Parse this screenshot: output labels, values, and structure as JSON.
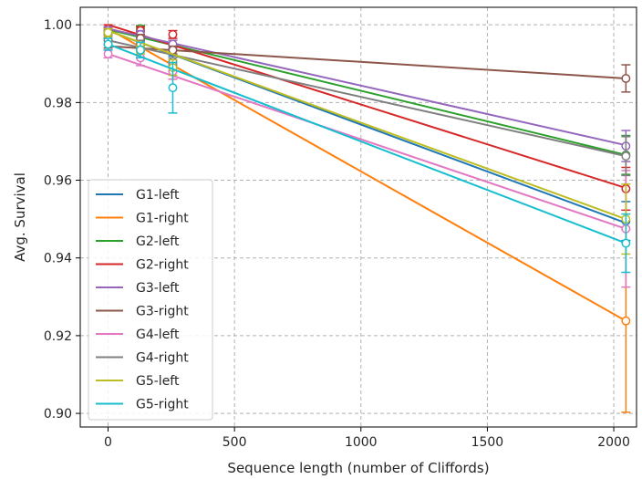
{
  "chart_data": {
    "type": "line",
    "xlabel": "Sequence length (number of Cliffords)",
    "ylabel": "Avg. Survival",
    "xlim": [
      -110,
      2090
    ],
    "ylim": [
      0.8965,
      1.0045
    ],
    "xticks": [
      0,
      500,
      1000,
      1500,
      2000
    ],
    "yticks": [
      0.9,
      0.92,
      0.94,
      0.96,
      0.98,
      1.0
    ],
    "xtick_labels": [
      "0",
      "500",
      "1000",
      "1500",
      "2000"
    ],
    "ytick_labels": [
      "0.90",
      "0.92",
      "0.94",
      "0.96",
      "0.98",
      "1.00"
    ],
    "grid": true,
    "legend_position": "lower-left",
    "x": [
      0,
      128,
      256,
      2048
    ],
    "series": [
      {
        "name": "G1-left",
        "color": "#1f77b4",
        "fit": [
          0.9985,
          0.949
        ],
        "points": [
          {
            "x": 0,
            "y": 0.9975,
            "err": 0.001
          },
          {
            "x": 128,
            "y": 0.996,
            "err": 0.001
          },
          {
            "x": 256,
            "y": 0.99,
            "err": 0.002
          },
          {
            "x": 2048,
            "y": 0.9495,
            "err": 0.005
          }
        ]
      },
      {
        "name": "G1-right",
        "color": "#ff7f0e",
        "fit": [
          0.999,
          0.9238
        ],
        "points": [
          {
            "x": 0,
            "y": 0.997,
            "err": 0.001
          },
          {
            "x": 128,
            "y": 0.994,
            "err": 0.001
          },
          {
            "x": 256,
            "y": 0.988,
            "err": 0.002
          },
          {
            "x": 2048,
            "y": 0.9238,
            "err": 0.0235
          }
        ]
      },
      {
        "name": "G2-left",
        "color": "#2ca02c",
        "fit": [
          0.9988,
          0.9665
        ],
        "points": [
          {
            "x": 0,
            "y": 0.998,
            "err": 0.001
          },
          {
            "x": 128,
            "y": 0.999,
            "err": 0.0008
          },
          {
            "x": 256,
            "y": 0.9935,
            "err": 0.001
          },
          {
            "x": 2048,
            "y": 0.9665,
            "err": 0.005
          }
        ]
      },
      {
        "name": "G2-right",
        "color": "#d62728",
        "fit": [
          1.0,
          0.958
        ],
        "points": [
          {
            "x": 0,
            "y": 0.999,
            "err": 0.001
          },
          {
            "x": 128,
            "y": 0.9985,
            "err": 0.001
          },
          {
            "x": 256,
            "y": 0.9975,
            "err": 0.001
          },
          {
            "x": 2048,
            "y": 0.9578,
            "err": 0.0055
          }
        ]
      },
      {
        "name": "G3-left",
        "color": "#9467bd",
        "fit": [
          0.999,
          0.969
        ],
        "points": [
          {
            "x": 0,
            "y": 0.9985,
            "err": 0.001
          },
          {
            "x": 128,
            "y": 0.9975,
            "err": 0.001
          },
          {
            "x": 256,
            "y": 0.995,
            "err": 0.001
          },
          {
            "x": 2048,
            "y": 0.9688,
            "err": 0.004
          }
        ]
      },
      {
        "name": "G3-right",
        "color": "#8c564b",
        "fit": [
          0.9945,
          0.9862
        ],
        "points": [
          {
            "x": 0,
            "y": 0.995,
            "err": 0.001
          },
          {
            "x": 128,
            "y": 0.9965,
            "err": 0.001
          },
          {
            "x": 256,
            "y": 0.9935,
            "err": 0.001
          },
          {
            "x": 2048,
            "y": 0.9862,
            "err": 0.0035
          }
        ]
      },
      {
        "name": "G4-left",
        "color": "#e377c2",
        "fit": [
          0.9925,
          0.9475
        ],
        "points": [
          {
            "x": 0,
            "y": 0.9925,
            "err": 0.001
          },
          {
            "x": 128,
            "y": 0.9915,
            "err": 0.002
          },
          {
            "x": 256,
            "y": 0.988,
            "err": 0.002
          },
          {
            "x": 2048,
            "y": 0.9475,
            "err": 0.015
          }
        ]
      },
      {
        "name": "G4-right",
        "color": "#7f7f7f",
        "fit": [
          0.996,
          0.9662
        ],
        "points": [
          {
            "x": 0,
            "y": 0.996,
            "err": 0.001
          },
          {
            "x": 128,
            "y": 0.995,
            "err": 0.001
          },
          {
            "x": 256,
            "y": 0.9905,
            "err": 0.001
          },
          {
            "x": 2048,
            "y": 0.9662,
            "err": 0.005
          }
        ]
      },
      {
        "name": "G5-left",
        "color": "#bcbd22",
        "fit": [
          0.9985,
          0.95
        ],
        "points": [
          {
            "x": 0,
            "y": 0.998,
            "err": 0.001
          },
          {
            "x": 128,
            "y": 0.9935,
            "err": 0.001
          },
          {
            "x": 256,
            "y": 0.989,
            "err": 0.002
          },
          {
            "x": 2048,
            "y": 0.95,
            "err": 0.009
          }
        ]
      },
      {
        "name": "G5-right",
        "color": "#17becf",
        "fit": [
          0.995,
          0.9438
        ],
        "points": [
          {
            "x": 0,
            "y": 0.995,
            "err": 0.0015
          },
          {
            "x": 128,
            "y": 0.9935,
            "err": 0.002
          },
          {
            "x": 256,
            "y": 0.9838,
            "err": 0.0065
          },
          {
            "x": 2048,
            "y": 0.9438,
            "err": 0.0075
          }
        ]
      }
    ]
  }
}
